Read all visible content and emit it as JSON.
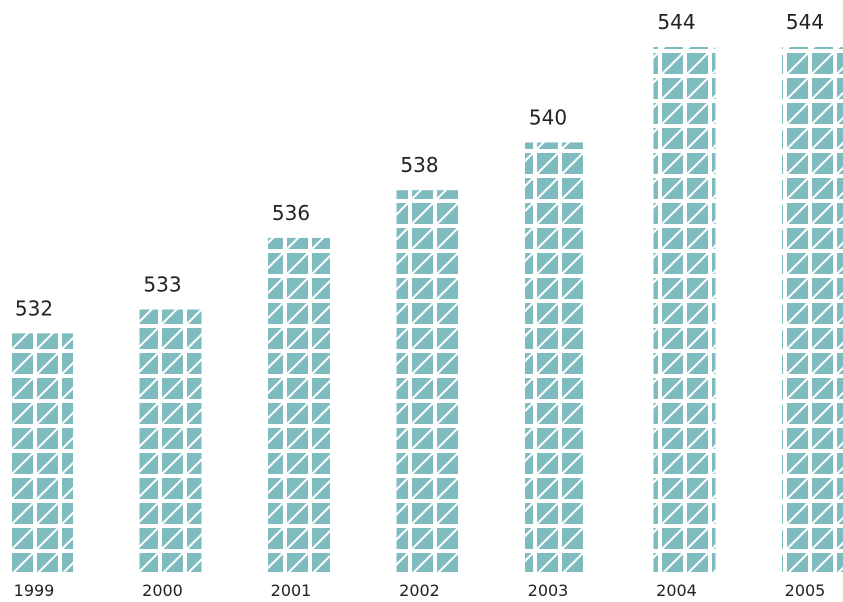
{
  "chart_data": {
    "type": "bar",
    "categories": [
      "1999",
      "2000",
      "2001",
      "2002",
      "2003",
      "2004",
      "2005"
    ],
    "values": [
      532,
      533,
      536,
      538,
      540,
      544,
      544
    ],
    "color": "#7fbcbf",
    "ylim": [
      522,
      544
    ]
  }
}
